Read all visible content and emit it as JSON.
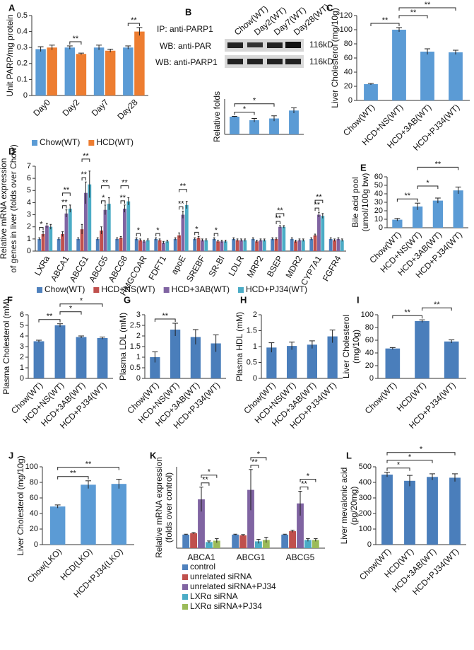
{
  "chart_data": [
    {
      "type": "bar",
      "panel": "A",
      "ylabel": "Unit PARP/mg protein",
      "categories": [
        "Day0",
        "Day2",
        "Day7",
        "Day28"
      ],
      "series": [
        {
          "name": "Chow(WT)",
          "color": "#5b9bd5",
          "values": [
            0.29,
            0.3,
            0.3,
            0.3
          ],
          "errors": [
            0.015,
            0.01,
            0.015,
            0.01
          ]
        },
        {
          "name": "HCD(WT)",
          "color": "#ed7d31",
          "values": [
            0.3,
            0.26,
            0.28,
            0.4
          ],
          "errors": [
            0.015,
            0.005,
            0.01,
            0.025
          ]
        }
      ],
      "ylim": [
        0,
        0.5
      ],
      "yticks": [
        0,
        0.1,
        0.2,
        0.3,
        0.4,
        0.5
      ],
      "annotations": [
        {
          "label": "**",
          "from": [
            1,
            0
          ],
          "to": [
            1,
            1
          ]
        },
        {
          "label": "**",
          "from": [
            3,
            0
          ],
          "to": [
            3,
            1
          ]
        }
      ]
    },
    {
      "type": "bar",
      "panel": "B",
      "ylabel": "Relative folds",
      "categories": [
        "Chow(WT)",
        "Day2(WT)",
        "Day7(WT)",
        "Day28(WT)"
      ],
      "blot_labels": [
        "IP: anti-PARP1",
        "WB: anti-PAR",
        "WB: anti-PARP1"
      ],
      "marker_labels": [
        "116kD",
        "116kD"
      ],
      "values": [
        1,
        0.8,
        0.9,
        1.35
      ],
      "errors": [
        0.02,
        0.1,
        0.15,
        0.15
      ],
      "color": "#5b9bd5",
      "ylim": [
        0,
        2
      ],
      "annotations": [
        {
          "label": "*",
          "from": [
            0,
            0
          ],
          "to": [
            1,
            0
          ]
        },
        {
          "label": "*",
          "from": [
            0,
            0
          ],
          "to": [
            2,
            0
          ]
        }
      ]
    },
    {
      "type": "bar",
      "panel": "C",
      "ylabel": "Liver Cholesterol (mg/10g)",
      "categories": [
        "Chow(WT)",
        "HCD+NS(WT)",
        "HCD+3AB(WT)",
        "HCD+PJ34(WT)"
      ],
      "values": [
        23,
        100,
        69,
        68
      ],
      "errors": [
        1,
        3,
        4,
        3
      ],
      "color": "#5b9bd5",
      "ylim": [
        0,
        120
      ],
      "yticks": [
        0,
        20,
        40,
        60,
        80,
        100,
        120
      ],
      "annotations": [
        {
          "label": "**",
          "from": [
            0,
            0
          ],
          "to": [
            1,
            0
          ]
        },
        {
          "label": "**",
          "from": [
            1,
            0
          ],
          "to": [
            2,
            0
          ]
        },
        {
          "label": "**",
          "from": [
            1,
            0
          ],
          "to": [
            3,
            0
          ]
        }
      ]
    },
    {
      "type": "bar",
      "panel": "D",
      "ylabel": [
        "Relative mRNA expression",
        "of genes in liver (folds over Chow)"
      ],
      "categories": [
        "LXRa",
        "ABCA1",
        "ABCG1",
        "ABCG5",
        "ABCG8",
        "HMGCOAR",
        "FDFT1",
        "apoE",
        "SREBF",
        "SR-BI",
        "LDLR",
        "MRP2",
        "BSEP",
        "MDR2",
        "CYP7A1",
        "FGFR4"
      ],
      "series": [
        {
          "name": "Chow(WT)",
          "color": "#4f81bd",
          "values": [
            1,
            1,
            1,
            1,
            1,
            1,
            1,
            1,
            1,
            1,
            1,
            1,
            1,
            1,
            1,
            1
          ],
          "errors": [
            0.1,
            0.1,
            0.1,
            0.1,
            0.1,
            0.1,
            0.1,
            0.1,
            0.1,
            0.1,
            0.1,
            0.1,
            0.1,
            0.1,
            0.1,
            0.1
          ]
        },
        {
          "name": "HCD+NS(WT)",
          "color": "#c0504d",
          "values": [
            1.4,
            1.4,
            1.8,
            1.7,
            1.1,
            0.9,
            0.9,
            1.3,
            1.1,
            0.8,
            0.9,
            0.8,
            1.0,
            0.8,
            1.3,
            0.9
          ],
          "errors": [
            0.2,
            0.2,
            0.4,
            0.3,
            0.1,
            0.1,
            0.1,
            0.2,
            0.1,
            0.1,
            0.1,
            0.1,
            0.1,
            0.1,
            0.1,
            0.1
          ]
        },
        {
          "name": "HCD+3AB(WT)",
          "color": "#8064a2",
          "values": [
            2.1,
            3.1,
            4.8,
            3.4,
            3.5,
            0.8,
            0.7,
            3.0,
            0.9,
            0.8,
            0.9,
            0.9,
            2.0,
            0.9,
            3.0,
            1.0
          ],
          "errors": [
            0.2,
            0.3,
            0.9,
            0.4,
            0.3,
            0.1,
            0.1,
            0.3,
            0.1,
            0.1,
            0.1,
            0.1,
            0.1,
            0.1,
            0.2,
            0.1
          ]
        },
        {
          "name": "HCD+PJ34(WT)",
          "color": "#4bacc6",
          "values": [
            2.0,
            3.5,
            5.5,
            3.9,
            4.1,
            0.9,
            0.8,
            3.8,
            0.9,
            0.8,
            0.9,
            0.9,
            2.0,
            0.9,
            2.9,
            0.9
          ],
          "errors": [
            0.2,
            0.3,
            1.1,
            0.5,
            0.3,
            0.1,
            0.1,
            0.3,
            0.1,
            0.1,
            0.1,
            0.1,
            0.1,
            0.1,
            0.2,
            0.1
          ]
        }
      ],
      "ylim": [
        0,
        7
      ],
      "yticks": [
        0,
        1,
        2,
        3,
        4,
        5,
        6,
        7
      ],
      "annotations": [
        {
          "label": "*",
          "from": [
            0,
            0
          ],
          "to": [
            0,
            1
          ]
        },
        {
          "label": "**",
          "from": [
            1,
            1
          ],
          "to": [
            1,
            2
          ]
        },
        {
          "label": "**",
          "from": [
            1,
            1
          ],
          "to": [
            1,
            3
          ]
        },
        {
          "label": "**",
          "from": [
            2,
            1
          ],
          "to": [
            2,
            2
          ]
        },
        {
          "label": "**",
          "from": [
            2,
            1
          ],
          "to": [
            2,
            3
          ]
        },
        {
          "label": "*",
          "from": [
            3,
            1
          ],
          "to": [
            3,
            2
          ]
        },
        {
          "label": "**",
          "from": [
            3,
            1
          ],
          "to": [
            3,
            3
          ]
        },
        {
          "label": "**",
          "from": [
            4,
            1
          ],
          "to": [
            4,
            2
          ]
        },
        {
          "label": "**",
          "from": [
            4,
            1
          ],
          "to": [
            4,
            3
          ]
        },
        {
          "label": "*",
          "from": [
            5,
            0
          ],
          "to": [
            5,
            1
          ]
        },
        {
          "label": "*",
          "from": [
            6,
            0
          ],
          "to": [
            6,
            1
          ]
        },
        {
          "label": "**",
          "from": [
            7,
            1
          ],
          "to": [
            7,
            2
          ]
        },
        {
          "label": "**",
          "from": [
            7,
            1
          ],
          "to": [
            7,
            3
          ]
        },
        {
          "label": "*",
          "from": [
            8,
            0
          ],
          "to": [
            8,
            1
          ]
        },
        {
          "label": "*",
          "from": [
            9,
            0
          ],
          "to": [
            9,
            1
          ]
        },
        {
          "label": "**",
          "from": [
            12,
            1
          ],
          "to": [
            12,
            2
          ]
        },
        {
          "label": "**",
          "from": [
            12,
            1
          ],
          "to": [
            12,
            3
          ]
        },
        {
          "label": "**",
          "from": [
            14,
            1
          ],
          "to": [
            14,
            2
          ]
        },
        {
          "label": "**",
          "from": [
            14,
            1
          ],
          "to": [
            14,
            3
          ]
        }
      ]
    },
    {
      "type": "bar",
      "panel": "E",
      "ylabel": [
        "Bile acid pool",
        "(umol/100g bw)"
      ],
      "categories": [
        "Chow(WT)",
        "HCD+NS(WT)",
        "HCD+3AB(WT)",
        "HCD+PJ34(WT)"
      ],
      "values": [
        9.5,
        25,
        32,
        44
      ],
      "errors": [
        1.5,
        4,
        3,
        4
      ],
      "color": "#5b9bd5",
      "ylim": [
        0,
        60
      ],
      "yticks": [
        0,
        10,
        20,
        30,
        40,
        50,
        60
      ],
      "annotations": [
        {
          "label": "**",
          "from": [
            0,
            0
          ],
          "to": [
            1,
            0
          ]
        },
        {
          "label": "*",
          "from": [
            1,
            0
          ],
          "to": [
            2,
            0
          ]
        },
        {
          "label": "**",
          "from": [
            1,
            0
          ],
          "to": [
            3,
            0
          ]
        }
      ]
    },
    {
      "type": "bar",
      "panel": "F",
      "ylabel": "Plasma Cholesterol  (mM)",
      "categories": [
        "Chow(WT)",
        "HCD+NS(WT)",
        "HCD+3AB(WT)",
        "HCD+PJ34(WT)"
      ],
      "values": [
        3.5,
        5.0,
        3.9,
        3.8
      ],
      "errors": [
        0.1,
        0.15,
        0.1,
        0.1
      ],
      "color": "#4a7ebb",
      "ylim": [
        0,
        6
      ],
      "yticks": [
        0,
        1,
        2,
        3,
        4,
        5,
        6
      ],
      "annotations": [
        {
          "label": "**",
          "from": [
            0,
            0
          ],
          "to": [
            1,
            0
          ]
        },
        {
          "label": "*",
          "from": [
            1,
            0
          ],
          "to": [
            2,
            0
          ]
        },
        {
          "label": "*",
          "from": [
            1,
            0
          ],
          "to": [
            3,
            0
          ]
        }
      ]
    },
    {
      "type": "bar",
      "panel": "G",
      "ylabel": "Plasma LDL  (mM)",
      "categories": [
        "Chow(WT)",
        "HCD+NS(WT)",
        "HCD+3AB(WT)",
        "HCD+PJ34(WT)"
      ],
      "values": [
        1.0,
        2.3,
        1.95,
        1.65
      ],
      "errors": [
        0.25,
        0.3,
        0.35,
        0.4
      ],
      "color": "#4a7ebb",
      "ylim": [
        0,
        3
      ],
      "yticks": [
        0,
        0.5,
        1,
        1.5,
        2,
        2.5,
        3
      ],
      "annotations": [
        {
          "label": "**",
          "from": [
            0,
            0
          ],
          "to": [
            1,
            0
          ]
        }
      ]
    },
    {
      "type": "bar",
      "panel": "H",
      "ylabel": "Plasma HDL  (mM)",
      "categories": [
        "Chow(WT)",
        "HCD+NS(WT)",
        "HCD+3AB(WT)",
        "HCD+PJ34(WT)"
      ],
      "values": [
        0.97,
        1.02,
        1.06,
        1.32
      ],
      "errors": [
        0.15,
        0.12,
        0.12,
        0.2
      ],
      "color": "#4a7ebb",
      "ylim": [
        0,
        2
      ],
      "yticks": [
        0,
        0.5,
        1,
        1.5,
        2
      ]
    },
    {
      "type": "bar",
      "panel": "I",
      "ylabel": [
        "Liver Cholesterol",
        "(mg/10g)"
      ],
      "categories": [
        "Chow(WT)",
        "HCD(WT)",
        "HCD+PJ34(WT)"
      ],
      "values": [
        47,
        90,
        58
      ],
      "errors": [
        1.5,
        2,
        2.5
      ],
      "color": "#4a7ebb",
      "ylim": [
        0,
        100
      ],
      "yticks": [
        0,
        20,
        40,
        60,
        80,
        100
      ],
      "annotations": [
        {
          "label": "**",
          "from": [
            0,
            0
          ],
          "to": [
            1,
            0
          ]
        },
        {
          "label": "**",
          "from": [
            1,
            0
          ],
          "to": [
            2,
            0
          ]
        }
      ]
    },
    {
      "type": "bar",
      "panel": "J",
      "ylabel": "Liver Cholesterol (mg/10g)",
      "categories": [
        "Chow(LKO)",
        "HCD(LKO)",
        "HCD+PJ34(LKO)"
      ],
      "values": [
        49,
        77,
        78
      ],
      "errors": [
        2,
        5,
        6
      ],
      "color": "#5b9bd5",
      "ylim": [
        0,
        100
      ],
      "yticks": [
        0,
        20,
        40,
        60,
        80,
        100
      ],
      "annotations": [
        {
          "label": "**",
          "from": [
            0,
            0
          ],
          "to": [
            1,
            0
          ]
        },
        {
          "label": "**",
          "from": [
            0,
            0
          ],
          "to": [
            2,
            0
          ]
        }
      ]
    },
    {
      "type": "bar",
      "panel": "K",
      "ylabel": [
        "Relative mRNA expression",
        "(folds over control)"
      ],
      "categories": [
        "ABCA1",
        "ABCG1",
        "ABCG5"
      ],
      "series": [
        {
          "name": "control",
          "color": "#4f81bd",
          "values": [
            1,
            1,
            1
          ],
          "errors": [
            0.03,
            0.03,
            0.03
          ]
        },
        {
          "name": "unrelated siRNA",
          "color": "#c0504d",
          "values": [
            1.1,
            0.95,
            1.25
          ],
          "errors": [
            0.05,
            0.05,
            0.08
          ]
        },
        {
          "name": "unrelated siRNA+PJ34",
          "color": "#8064a2",
          "values": [
            3.6,
            4.3,
            3.3
          ],
          "errors": [
            0.9,
            1.5,
            0.9
          ]
        },
        {
          "name": "LXRα siRNA",
          "color": "#4bacc6",
          "values": [
            0.45,
            0.5,
            0.6
          ],
          "errors": [
            0.08,
            0.15,
            0.1
          ]
        },
        {
          "name": "LXRα siRNA+PJ34",
          "color": "#9bbb59",
          "values": [
            0.55,
            0.6,
            0.6
          ],
          "errors": [
            0.15,
            0.2,
            0.1
          ]
        }
      ],
      "ylim": [
        0,
        6
      ],
      "annotations": [
        {
          "label": "**",
          "from": [
            0,
            2
          ],
          "to": [
            0,
            3
          ]
        },
        {
          "label": "*",
          "from": [
            0,
            2
          ],
          "to": [
            0,
            4
          ]
        },
        {
          "label": "**",
          "from": [
            1,
            2
          ],
          "to": [
            1,
            3
          ]
        },
        {
          "label": "*",
          "from": [
            1,
            2
          ],
          "to": [
            1,
            4
          ]
        },
        {
          "label": "**",
          "from": [
            2,
            2
          ],
          "to": [
            2,
            3
          ]
        },
        {
          "label": "*",
          "from": [
            2,
            2
          ],
          "to": [
            2,
            4
          ]
        }
      ]
    },
    {
      "type": "bar",
      "panel": "L",
      "ylabel": [
        "Liver mevalonic acid",
        "(pg/20mg)"
      ],
      "categories": [
        "Chow(WT)",
        "HCD(WT)",
        "HCD+3AB(WT)",
        "HCD+PJ34(WT)"
      ],
      "values": [
        450,
        410,
        435,
        430
      ],
      "errors": [
        15,
        35,
        20,
        25
      ],
      "color": "#4a7ebb",
      "ylim": [
        0,
        500
      ],
      "yticks": [
        0,
        100,
        200,
        300,
        400,
        500
      ],
      "annotations": [
        {
          "label": "*",
          "from": [
            0,
            0
          ],
          "to": [
            1,
            0
          ]
        },
        {
          "label": "*",
          "from": [
            0,
            0
          ],
          "to": [
            2,
            0
          ]
        },
        {
          "label": "*",
          "from": [
            0,
            0
          ],
          "to": [
            3,
            0
          ]
        }
      ]
    }
  ]
}
